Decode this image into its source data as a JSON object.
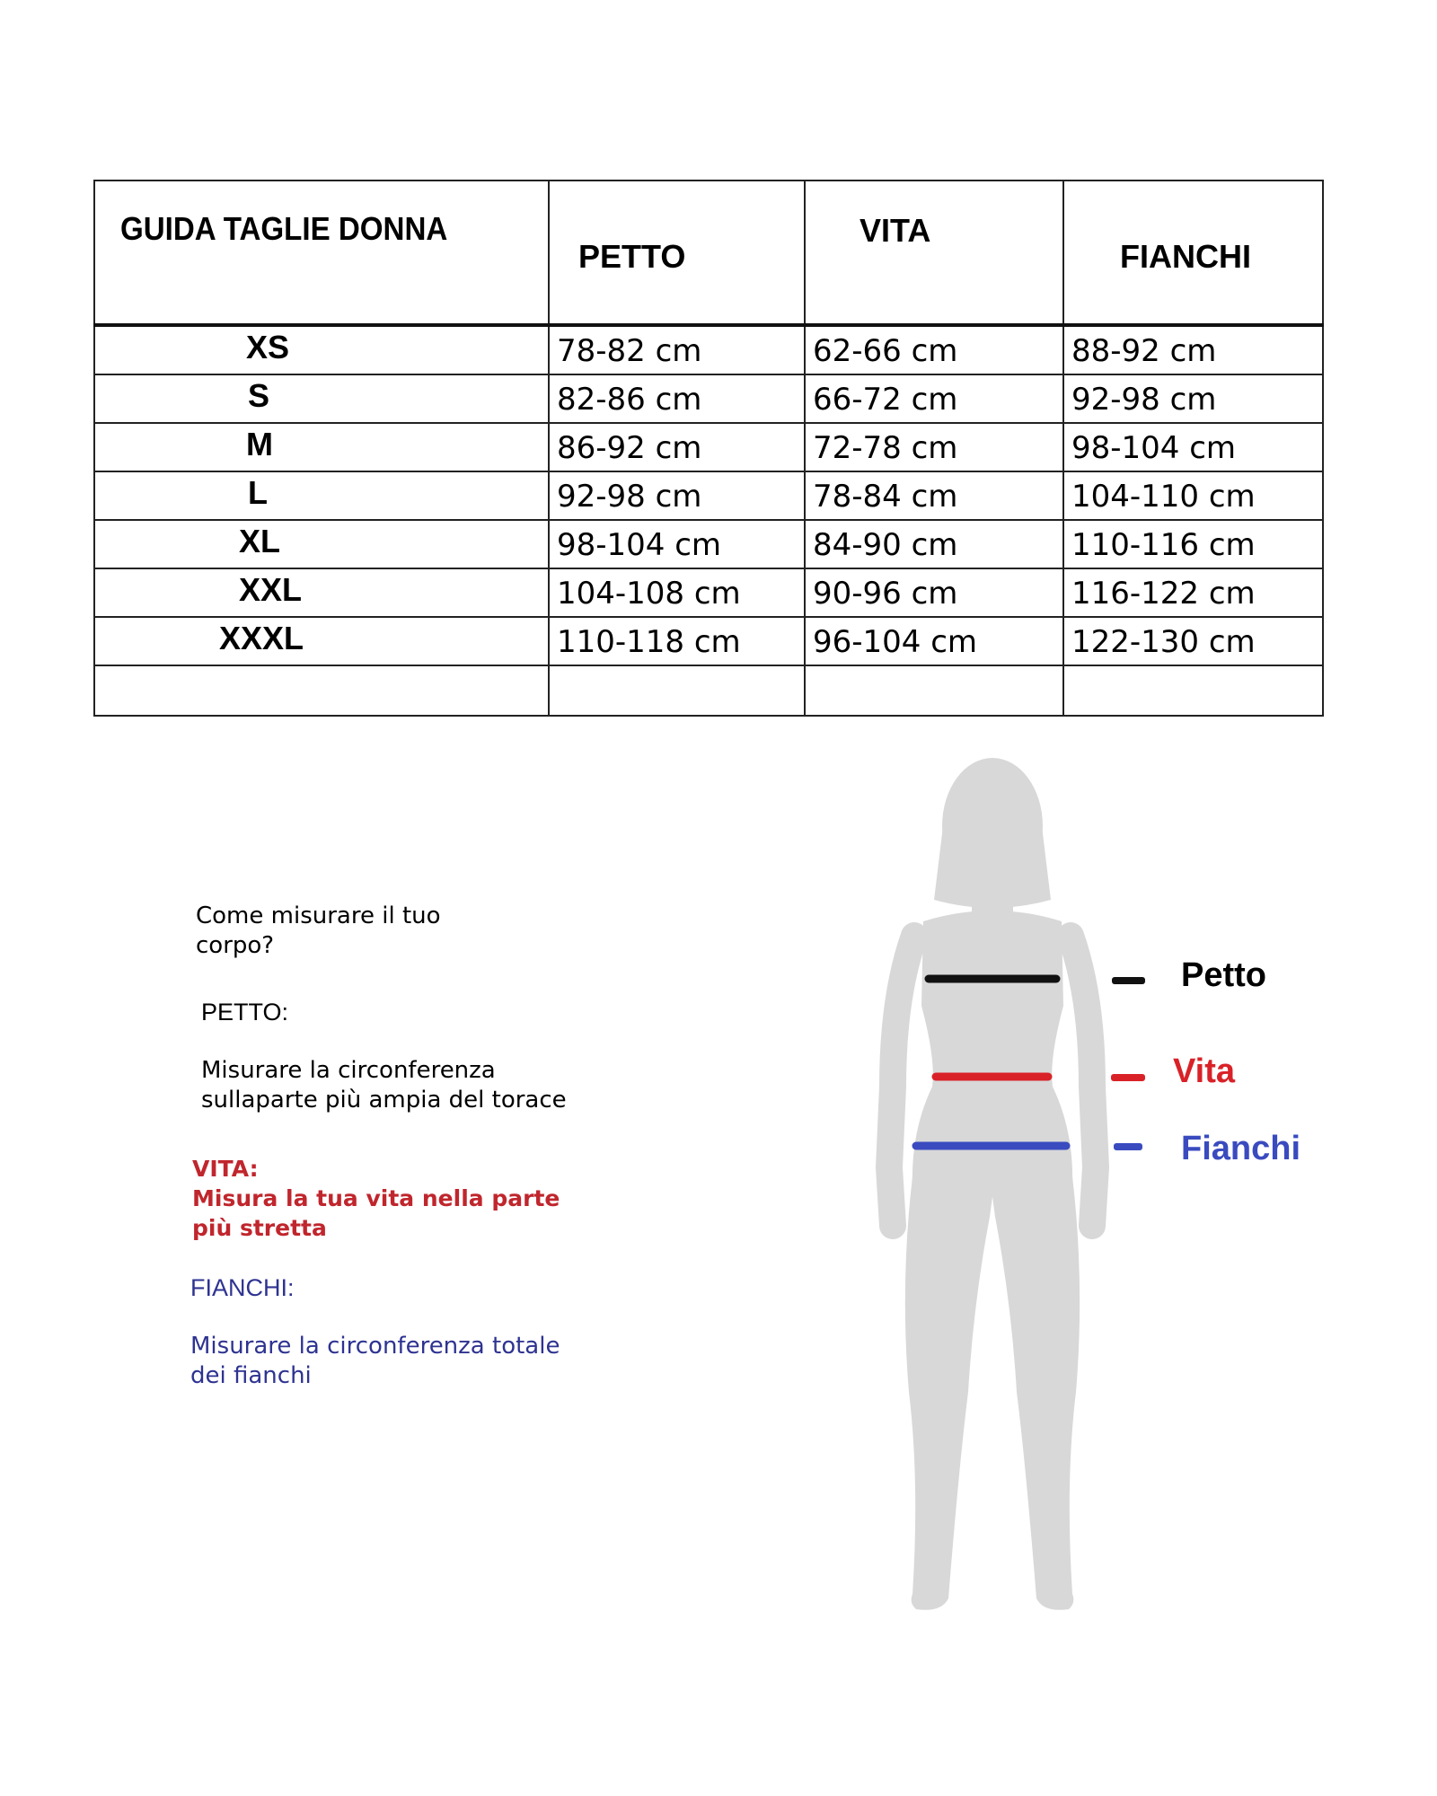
{
  "table": {
    "headers": [
      "GUIDA TAGLIE DONNA",
      "PETTO",
      "VITA",
      "FIANCHI"
    ],
    "rows": [
      {
        "size": "XS",
        "petto": "78-82 cm",
        "vita": "62-66 cm",
        "fianchi": "88-92 cm"
      },
      {
        "size": "S",
        "petto": "82-86 cm",
        "vita": "66-72 cm",
        "fianchi": "92-98 cm"
      },
      {
        "size": "M",
        "petto": "86-92 cm",
        "vita": "72-78 cm",
        "fianchi": "98-104 cm"
      },
      {
        "size": "L",
        "petto": "92-98 cm",
        "vita": "78-84 cm",
        "fianchi": "104-110 cm"
      },
      {
        "size": "XL",
        "petto": "98-104 cm",
        "vita": "84-90 cm",
        "fianchi": "110-116 cm"
      },
      {
        "size": "XXL",
        "petto": "104-108 cm",
        "vita": "90-96 cm",
        "fianchi": "116-122 cm"
      },
      {
        "size": "XXXL",
        "petto": "110-118 cm",
        "vita": "96-104 cm",
        "fianchi": "122-130 cm"
      }
    ]
  },
  "instructions": {
    "title_line1": "Come misurare il tuo",
    "title_line2": "corpo?",
    "petto_heading": "PETTO:",
    "petto_line1": "Misurare la circonferenza",
    "petto_line2": "sullaparte più ampia del torace",
    "vita_heading": "VITA:",
    "vita_line1": "Misura la tua vita nella parte",
    "vita_line2": "più stretta",
    "fianchi_heading": "FIANCHI:",
    "fianchi_line1": "Misurare la circonferenza totale",
    "fianchi_line2": "dei fianchi"
  },
  "figure": {
    "legend": {
      "petto": "Petto",
      "vita": "Vita",
      "fianchi": "Fianchi"
    },
    "colors": {
      "petto": "#111111",
      "vita": "#d92228",
      "fianchi": "#3a4bbf",
      "silhouette": "#d8d8d8",
      "vita_text": "#c0262d",
      "fianchi_text": "#2e3391"
    }
  }
}
